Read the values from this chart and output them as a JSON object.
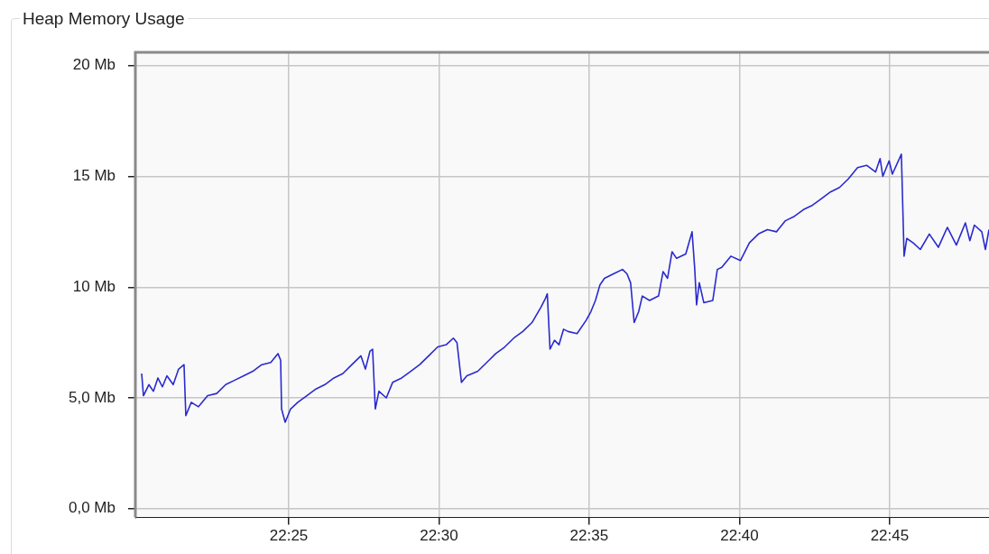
{
  "chart_data": {
    "type": "line",
    "title": "Heap Memory Usage",
    "xlim": [
      22.3316,
      22.8051
    ],
    "xticks": [
      {
        "value": 22.4167,
        "label": "22:25"
      },
      {
        "value": 22.5,
        "label": "22:30"
      },
      {
        "value": 22.5833,
        "label": "22:35"
      },
      {
        "value": 22.6667,
        "label": "22:40"
      },
      {
        "value": 22.75,
        "label": "22:45"
      }
    ],
    "ylim": [
      -0.4,
      20.6
    ],
    "yticks": [
      {
        "value": 0,
        "label": "0,0 Mb"
      },
      {
        "value": 5,
        "label": "5,0 Mb"
      },
      {
        "value": 10,
        "label": "10 Mb"
      },
      {
        "value": 15,
        "label": "15 Mb"
      },
      {
        "value": 20,
        "label": "20 Mb"
      }
    ],
    "grid": true,
    "legend": false,
    "marker": "none",
    "line_style": "solid",
    "series": [
      {
        "color": "#2a2ad0",
        "x": [
          22.3351,
          22.3361,
          22.3391,
          22.3416,
          22.3441,
          22.3466,
          22.3491,
          22.3526,
          22.3556,
          22.3586,
          22.3596,
          22.3626,
          22.3666,
          22.3717,
          22.3767,
          22.3817,
          22.3867,
          22.3917,
          22.3967,
          22.4017,
          22.4067,
          22.4107,
          22.4122,
          22.4127,
          22.4147,
          22.4177,
          22.4217,
          22.4267,
          22.4317,
          22.4367,
          22.4417,
          22.4467,
          22.4517,
          22.4567,
          22.4592,
          22.4617,
          22.4632,
          22.4647,
          22.4667,
          22.4708,
          22.4743,
          22.4793,
          22.4843,
          22.4893,
          22.4943,
          22.4993,
          22.504,
          22.508,
          22.51,
          22.5125,
          22.5155,
          22.5215,
          22.5265,
          22.5315,
          22.5365,
          22.5415,
          22.5465,
          22.5516,
          22.5566,
          22.5591,
          22.5601,
          22.5616,
          22.5641,
          22.5666,
          22.5691,
          22.5716,
          22.5766,
          22.5816,
          22.5843,
          22.5868,
          22.5893,
          22.5918,
          22.5968,
          22.6018,
          22.6043,
          22.6063,
          22.6083,
          22.6108,
          22.6128,
          22.6168,
          22.6218,
          22.6243,
          22.6268,
          22.6293,
          22.6318,
          22.6369,
          22.6404,
          22.6419,
          22.6429,
          22.6444,
          22.6469,
          22.6519,
          22.6544,
          22.6569,
          22.6619,
          22.6672,
          22.6722,
          22.6772,
          22.6822,
          22.6872,
          22.6922,
          22.6972,
          22.7022,
          22.7072,
          22.7122,
          22.7172,
          22.7222,
          22.7272,
          22.7322,
          22.7372,
          22.7422,
          22.7447,
          22.7462,
          22.7497,
          22.7515,
          22.7565,
          22.758,
          22.7595,
          22.763,
          22.767,
          22.772,
          22.777,
          22.782,
          22.787,
          22.792,
          22.7945,
          22.797,
          22.8011,
          22.8031,
          22.8051
        ],
        "values": [
          6.1,
          5.1,
          5.6,
          5.3,
          5.9,
          5.5,
          6.0,
          5.6,
          6.3,
          6.5,
          4.2,
          4.8,
          4.6,
          5.1,
          5.2,
          5.6,
          5.8,
          6.0,
          6.2,
          6.5,
          6.6,
          7.0,
          6.7,
          4.5,
          3.9,
          4.5,
          4.8,
          5.1,
          5.4,
          5.6,
          5.9,
          6.1,
          6.5,
          6.9,
          6.3,
          7.1,
          7.2,
          4.5,
          5.3,
          5.0,
          5.7,
          5.9,
          6.2,
          6.5,
          6.9,
          7.3,
          7.4,
          7.7,
          7.5,
          5.7,
          6.0,
          6.2,
          6.6,
          7.0,
          7.3,
          7.7,
          8.0,
          8.4,
          9.1,
          9.5,
          9.7,
          7.2,
          7.6,
          7.4,
          8.1,
          8.0,
          7.9,
          8.5,
          8.9,
          9.4,
          10.1,
          10.4,
          10.6,
          10.8,
          10.6,
          10.2,
          8.4,
          8.9,
          9.6,
          9.4,
          9.6,
          10.7,
          10.4,
          11.6,
          11.3,
          11.5,
          12.5,
          10.8,
          9.2,
          10.2,
          9.3,
          9.4,
          10.8,
          10.9,
          11.4,
          11.2,
          12.0,
          12.4,
          12.6,
          12.5,
          13.0,
          13.2,
          13.5,
          13.7,
          14.0,
          14.3,
          14.5,
          14.9,
          15.4,
          15.5,
          15.2,
          15.8,
          15.0,
          15.7,
          15.1,
          16.0,
          11.4,
          12.2,
          12.0,
          11.7,
          12.4,
          11.8,
          12.7,
          11.9,
          12.9,
          12.1,
          12.8,
          12.5,
          11.7,
          12.6
        ]
      }
    ]
  }
}
